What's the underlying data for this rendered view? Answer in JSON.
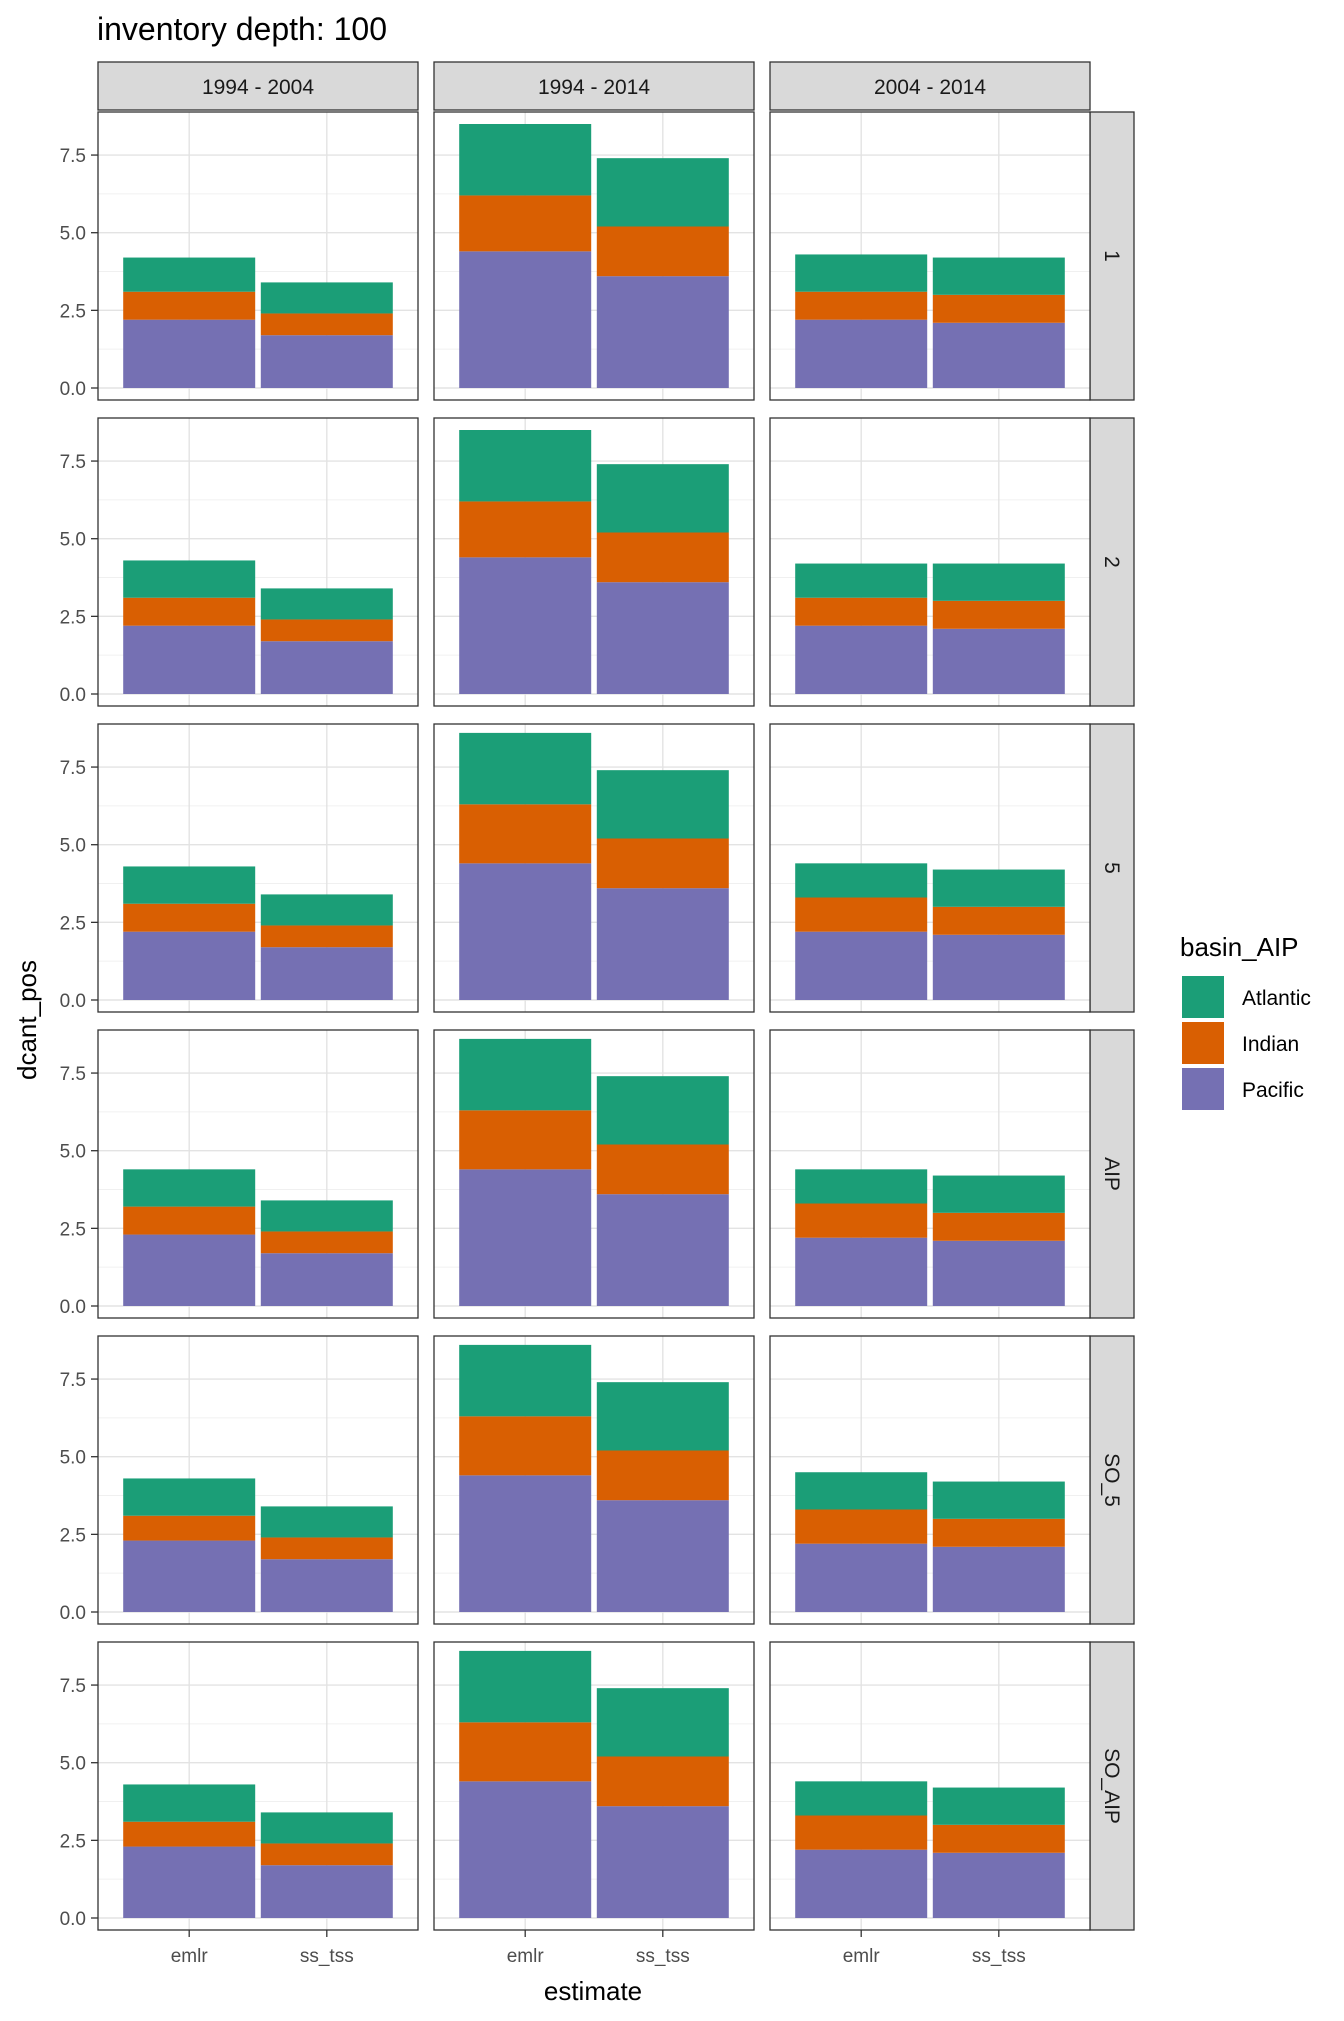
{
  "chart_data": {
    "type": "bar",
    "stacked": true,
    "title": "inventory depth: 100",
    "xlabel": "estimate",
    "ylabel": "dcant_pos",
    "ylim": [
      0,
      8.5
    ],
    "yticks": [
      "0.0",
      "2.5",
      "5.0",
      "7.5"
    ],
    "ytick_values": [
      0,
      2.5,
      5,
      7.5
    ],
    "grid": true,
    "legend_position": "right",
    "categories": [
      "emlr",
      "ss_tss"
    ],
    "facet_cols": [
      "1994 - 2004",
      "1994 - 2014",
      "2004 - 2014"
    ],
    "facet_rows": [
      "1",
      "2",
      "5",
      "AIP",
      "SO_5",
      "SO_AIP"
    ],
    "legend": {
      "title": "basin_AIP",
      "items": [
        {
          "name": "Atlantic",
          "color": "#1B9E77"
        },
        {
          "name": "Indian",
          "color": "#D95F02"
        },
        {
          "name": "Pacific",
          "color": "#7570B3"
        }
      ]
    },
    "stack_order": [
      "Pacific",
      "Indian",
      "Atlantic"
    ],
    "panels": [
      [
        {
          "emlr": {
            "Pacific": 2.2,
            "Indian": 0.9,
            "Atlantic": 1.1
          },
          "ss_tss": {
            "Pacific": 1.7,
            "Indian": 0.7,
            "Atlantic": 1.0
          }
        },
        {
          "emlr": {
            "Pacific": 4.4,
            "Indian": 1.8,
            "Atlantic": 2.3
          },
          "ss_tss": {
            "Pacific": 3.6,
            "Indian": 1.6,
            "Atlantic": 2.2
          }
        },
        {
          "emlr": {
            "Pacific": 2.2,
            "Indian": 0.9,
            "Atlantic": 1.2
          },
          "ss_tss": {
            "Pacific": 2.1,
            "Indian": 0.9,
            "Atlantic": 1.2
          }
        }
      ],
      [
        {
          "emlr": {
            "Pacific": 2.2,
            "Indian": 0.9,
            "Atlantic": 1.2
          },
          "ss_tss": {
            "Pacific": 1.7,
            "Indian": 0.7,
            "Atlantic": 1.0
          }
        },
        {
          "emlr": {
            "Pacific": 4.4,
            "Indian": 1.8,
            "Atlantic": 2.3
          },
          "ss_tss": {
            "Pacific": 3.6,
            "Indian": 1.6,
            "Atlantic": 2.2
          }
        },
        {
          "emlr": {
            "Pacific": 2.2,
            "Indian": 0.9,
            "Atlantic": 1.1
          },
          "ss_tss": {
            "Pacific": 2.1,
            "Indian": 0.9,
            "Atlantic": 1.2
          }
        }
      ],
      [
        {
          "emlr": {
            "Pacific": 2.2,
            "Indian": 0.9,
            "Atlantic": 1.2
          },
          "ss_tss": {
            "Pacific": 1.7,
            "Indian": 0.7,
            "Atlantic": 1.0
          }
        },
        {
          "emlr": {
            "Pacific": 4.4,
            "Indian": 1.9,
            "Atlantic": 2.3
          },
          "ss_tss": {
            "Pacific": 3.6,
            "Indian": 1.6,
            "Atlantic": 2.2
          }
        },
        {
          "emlr": {
            "Pacific": 2.2,
            "Indian": 1.1,
            "Atlantic": 1.1
          },
          "ss_tss": {
            "Pacific": 2.1,
            "Indian": 0.9,
            "Atlantic": 1.2
          }
        }
      ],
      [
        {
          "emlr": {
            "Pacific": 2.3,
            "Indian": 0.9,
            "Atlantic": 1.2
          },
          "ss_tss": {
            "Pacific": 1.7,
            "Indian": 0.7,
            "Atlantic": 1.0
          }
        },
        {
          "emlr": {
            "Pacific": 4.4,
            "Indian": 1.9,
            "Atlantic": 2.3
          },
          "ss_tss": {
            "Pacific": 3.6,
            "Indian": 1.6,
            "Atlantic": 2.2
          }
        },
        {
          "emlr": {
            "Pacific": 2.2,
            "Indian": 1.1,
            "Atlantic": 1.1
          },
          "ss_tss": {
            "Pacific": 2.1,
            "Indian": 0.9,
            "Atlantic": 1.2
          }
        }
      ],
      [
        {
          "emlr": {
            "Pacific": 2.3,
            "Indian": 0.8,
            "Atlantic": 1.2
          },
          "ss_tss": {
            "Pacific": 1.7,
            "Indian": 0.7,
            "Atlantic": 1.0
          }
        },
        {
          "emlr": {
            "Pacific": 4.4,
            "Indian": 1.9,
            "Atlantic": 2.3
          },
          "ss_tss": {
            "Pacific": 3.6,
            "Indian": 1.6,
            "Atlantic": 2.2
          }
        },
        {
          "emlr": {
            "Pacific": 2.2,
            "Indian": 1.1,
            "Atlantic": 1.2
          },
          "ss_tss": {
            "Pacific": 2.1,
            "Indian": 0.9,
            "Atlantic": 1.2
          }
        }
      ],
      [
        {
          "emlr": {
            "Pacific": 2.3,
            "Indian": 0.8,
            "Atlantic": 1.2
          },
          "ss_tss": {
            "Pacific": 1.7,
            "Indian": 0.7,
            "Atlantic": 1.0
          }
        },
        {
          "emlr": {
            "Pacific": 4.4,
            "Indian": 1.9,
            "Atlantic": 2.3
          },
          "ss_tss": {
            "Pacific": 3.6,
            "Indian": 1.6,
            "Atlantic": 2.2
          }
        },
        {
          "emlr": {
            "Pacific": 2.2,
            "Indian": 1.1,
            "Atlantic": 1.1
          },
          "ss_tss": {
            "Pacific": 2.1,
            "Indian": 0.9,
            "Atlantic": 1.2
          }
        }
      ]
    ]
  }
}
